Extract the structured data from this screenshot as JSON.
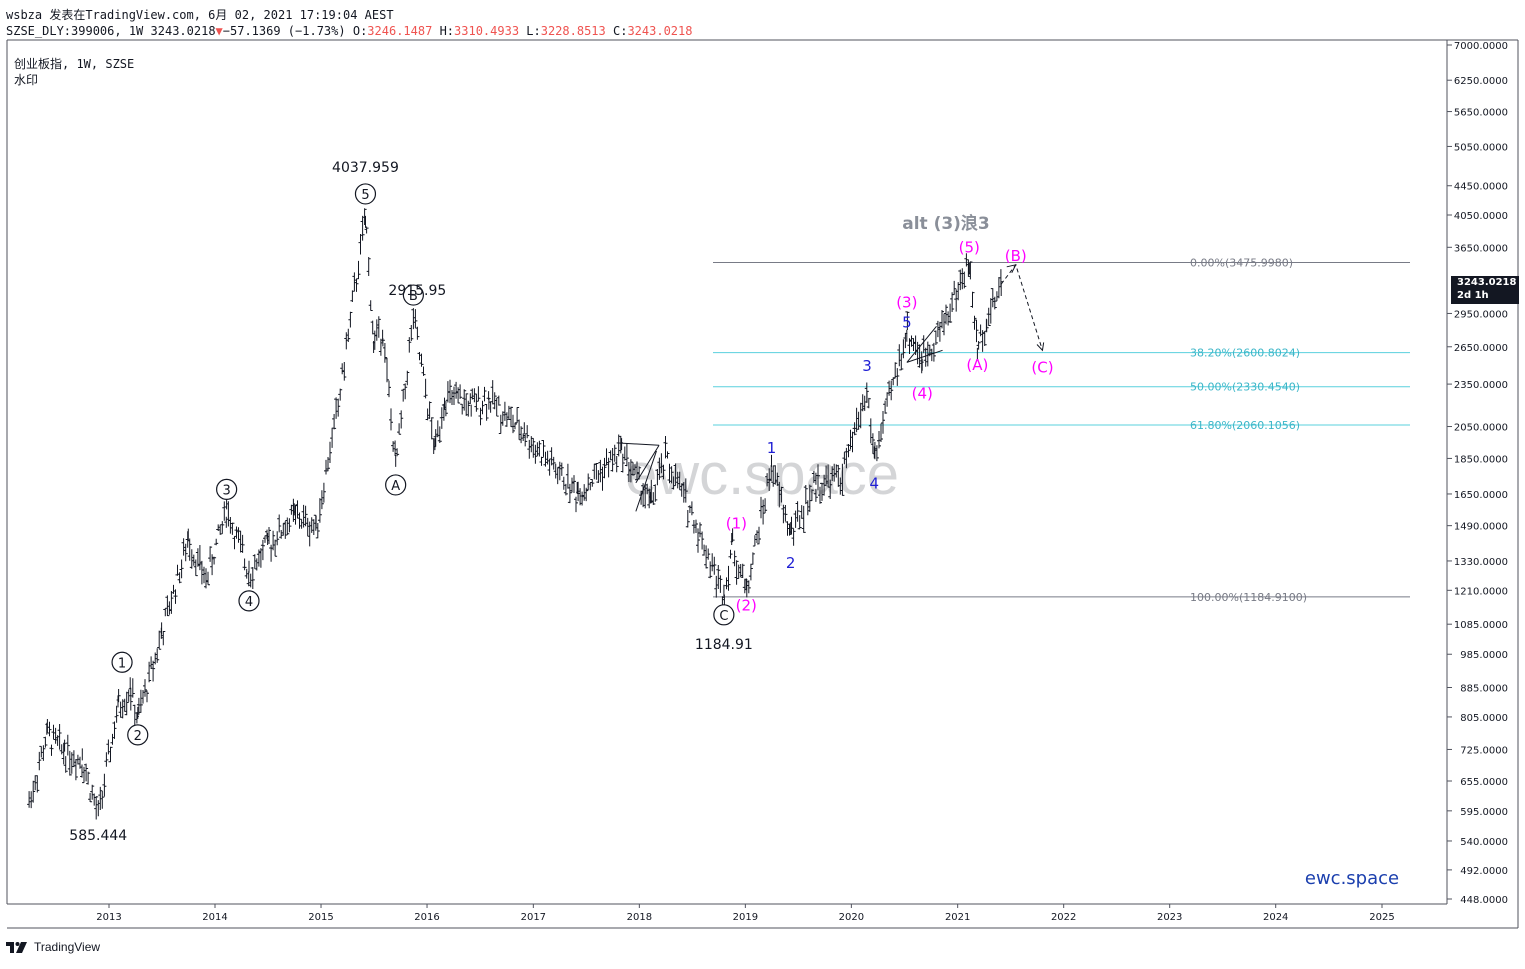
{
  "header": {
    "line1": "wsbza 发表在TradingView.com, 6月 02, 2021 17:19:04 AEST",
    "symbol": "SZSE_DLY:399006, 1W",
    "last": "3243.0218",
    "change": "−57.1369 (−1.73%)",
    "o_label": "O:",
    "o": "3246.1487",
    "h_label": "H:",
    "h": "3310.4933",
    "l_label": "L:",
    "l": "3228.8513",
    "c_label": "C:",
    "c": "3243.0218"
  },
  "legend": {
    "name": "创业板指, 1W, SZSE",
    "watermark_label": "水印"
  },
  "watermark": "ewc.space",
  "brand": "ewc.space",
  "footer": "TradingView",
  "price_tag": {
    "value": "3243.0218",
    "countdown": "2d 1h"
  },
  "colors": {
    "candles": "#131722",
    "magenta": "#ff00ff",
    "blue": "#1f1fd4",
    "fib": "#5ad0de",
    "gray": "#8a8f99",
    "brand": "#1b3fae",
    "down": "#ef5350"
  },
  "chart_data": {
    "type": "line",
    "scale": "log",
    "x_ticks": [
      "2013",
      "2014",
      "2015",
      "2016",
      "2017",
      "2018",
      "2019",
      "2020",
      "2021",
      "2022",
      "2023",
      "2024",
      "2025"
    ],
    "y_ticks": [
      "7000.0000",
      "6250.0000",
      "5650.0000",
      "5050.0000",
      "4450.0000",
      "4050.0000",
      "3650.0000",
      "2950.0000",
      "2650.0000",
      "2350.0000",
      "2050.0000",
      "1850.0000",
      "1650.0000",
      "1490.0000",
      "1330.0000",
      "1210.0000",
      "1085.0000",
      "985.0000",
      "885.0000",
      "805.0000",
      "725.0000",
      "655.0000",
      "595.0000",
      "540.0000",
      "492.0000",
      "448.0000"
    ],
    "y_tick_values": [
      7000,
      6250,
      5650,
      5050,
      4450,
      4050,
      3650,
      2950,
      2650,
      2350,
      2050,
      1850,
      1650,
      1490,
      1330,
      1210,
      1085,
      985,
      885,
      805,
      725,
      655,
      595,
      540,
      492,
      448
    ],
    "price_path": [
      [
        "2012-04-01",
        610
      ],
      [
        "2012-06-01",
        760
      ],
      [
        "2012-08-01",
        720
      ],
      [
        "2012-10-01",
        700
      ],
      [
        "2012-11-25",
        585.444
      ],
      [
        "2013-02-01",
        830
      ],
      [
        "2013-03-15",
        880
      ],
      [
        "2013-04-10",
        800
      ],
      [
        "2013-07-01",
        1050
      ],
      [
        "2013-10-01",
        1420
      ],
      [
        "2013-12-01",
        1250
      ],
      [
        "2014-02-10",
        1570
      ],
      [
        "2014-04-28",
        1280
      ],
      [
        "2014-07-01",
        1400
      ],
      [
        "2014-10-01",
        1540
      ],
      [
        "2014-12-15",
        1480
      ],
      [
        "2015-03-01",
        2200
      ],
      [
        "2015-06-03",
        4037.959
      ],
      [
        "2015-07-01",
        2700
      ],
      [
        "2015-08-01",
        2800
      ],
      [
        "2015-09-15",
        1800
      ],
      [
        "2015-11-15",
        2915.95
      ],
      [
        "2016-01-28",
        1900
      ],
      [
        "2016-03-01",
        2250
      ],
      [
        "2016-06-01",
        2200
      ],
      [
        "2016-08-01",
        2250
      ],
      [
        "2016-12-01",
        2000
      ],
      [
        "2017-06-01",
        1650
      ],
      [
        "2017-11-01",
        1900
      ],
      [
        "2018-02-08",
        1600
      ],
      [
        "2018-04-01",
        1850
      ],
      [
        "2018-07-01",
        1550
      ],
      [
        "2018-10-19",
        1184.91
      ],
      [
        "2018-11-15",
        1400
      ],
      [
        "2019-01-04",
        1210
      ],
      [
        "2019-04-01",
        1800
      ],
      [
        "2019-06-06",
        1450
      ],
      [
        "2019-09-01",
        1700
      ],
      [
        "2019-12-01",
        1750
      ],
      [
        "2020-02-24",
        2300
      ],
      [
        "2020-03-20",
        1850
      ],
      [
        "2020-07-10",
        2800
      ],
      [
        "2020-09-01",
        2550
      ],
      [
        "2020-11-01",
        2800
      ],
      [
        "2021-02-10",
        3475.998
      ],
      [
        "2021-03-10",
        2640
      ],
      [
        "2021-04-10",
        2900
      ],
      [
        "2021-05-31",
        3243.0218
      ]
    ],
    "projection": [
      [
        "2021-05-31",
        3243.0218
      ],
      [
        "2021-07-20",
        3450
      ],
      [
        "2021-10-20",
        2620
      ]
    ],
    "fib_levels": [
      {
        "label": "0.00%(3475.9980)",
        "value": 3475.998
      },
      {
        "label": "38.20%(2600.8024)",
        "value": 2600.8024
      },
      {
        "label": "50.00%(2330.4540)",
        "value": 2330.454
      },
      {
        "label": "61.80%(2060.1056)",
        "value": 2060.1056
      },
      {
        "label": "100.00%(1184.9100)",
        "value": 1184.91
      }
    ],
    "price_labels": [
      {
        "text": "585.444",
        "date": "2012-11-25",
        "value": 585.444
      },
      {
        "text": "4037.959",
        "date": "2015-06-03",
        "value": 4037.959
      },
      {
        "text": "2915.95",
        "date": "2015-11-15",
        "value": 2915.95
      },
      {
        "text": "1184.91",
        "date": "2018-10-19",
        "value": 1184.91
      }
    ],
    "wave_labels_circled": [
      "1",
      "2",
      "3",
      "4",
      "5",
      "A",
      "B",
      "C"
    ],
    "wave_labels_intermediate": [
      "(1)",
      "(2)",
      "(3)",
      "(4)",
      "(5)",
      "(A)",
      "(B)",
      "(C)"
    ],
    "wave_labels_minor": [
      "1",
      "2",
      "3",
      "4",
      "5"
    ],
    "annotation": "alt (3)浪3"
  }
}
